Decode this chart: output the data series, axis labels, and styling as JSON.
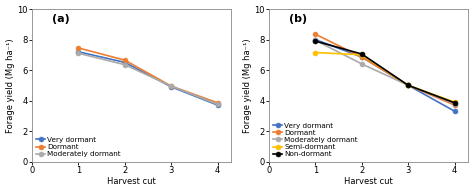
{
  "panel_a": {
    "label": "(a)",
    "x": [
      1,
      2,
      3,
      4
    ],
    "series": [
      {
        "name": "Very dormant",
        "color": "#4472C4",
        "marker": "o",
        "values": [
          7.2,
          6.5,
          4.9,
          3.7
        ]
      },
      {
        "name": "Dormant",
        "color": "#ED7D31",
        "marker": "o",
        "values": [
          7.45,
          6.65,
          4.95,
          3.85
        ]
      },
      {
        "name": "Moderately dormant",
        "color": "#AAAAAA",
        "marker": "o",
        "values": [
          7.1,
          6.35,
          4.95,
          3.75
        ]
      }
    ],
    "xlabel": "Harvest cut",
    "ylabel": "Forage yield (Mg ha⁻¹)",
    "xlim": [
      0,
      4.3
    ],
    "ylim": [
      0,
      10
    ],
    "yticks": [
      0,
      2,
      4,
      6,
      8,
      10
    ],
    "xticks": [
      0,
      1,
      2,
      3,
      4
    ]
  },
  "panel_b": {
    "label": "(b)",
    "x": [
      1,
      2,
      3,
      4
    ],
    "series": [
      {
        "name": "Very dormant",
        "color": "#4472C4",
        "marker": "o",
        "values": [
          8.0,
          6.85,
          5.0,
          3.3
        ]
      },
      {
        "name": "Dormant",
        "color": "#ED7D31",
        "marker": "o",
        "values": [
          8.35,
          6.85,
          5.0,
          3.7
        ]
      },
      {
        "name": "Moderately dormant",
        "color": "#AAAAAA",
        "marker": "o",
        "values": [
          7.95,
          6.4,
          5.0,
          3.8
        ]
      },
      {
        "name": "Semi-dormant",
        "color": "#FFC000",
        "marker": "o",
        "values": [
          7.15,
          7.0,
          5.0,
          3.9
        ]
      },
      {
        "name": "Non-dormant",
        "color": "#000000",
        "marker": "o",
        "values": [
          7.9,
          7.05,
          5.0,
          3.85
        ]
      }
    ],
    "xlabel": "Harvest cut",
    "ylabel": "Forage yield (Mg ha⁻¹)",
    "xlim": [
      0,
      4.3
    ],
    "ylim": [
      0,
      10
    ],
    "yticks": [
      0,
      2,
      4,
      6,
      8,
      10
    ],
    "xticks": [
      0,
      1,
      2,
      3,
      4
    ]
  },
  "linewidth": 1.2,
  "markersize": 3.5,
  "fontsize_label": 6,
  "fontsize_legend": 5.2,
  "fontsize_tick": 6,
  "fontsize_panel_label": 8
}
